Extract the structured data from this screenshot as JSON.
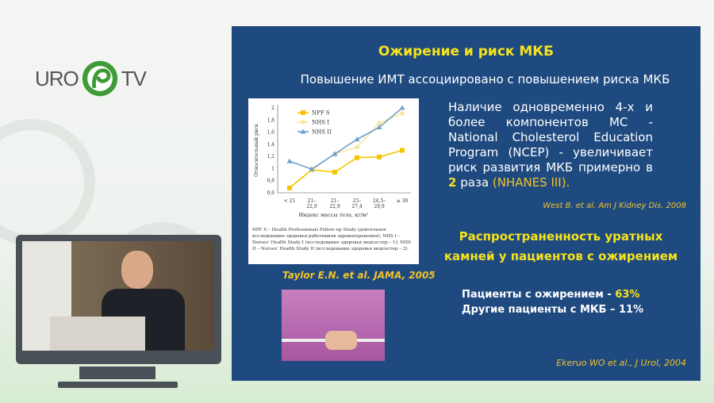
{
  "logo": {
    "left": "URO",
    "right": "TV",
    "color": "#3e9b35"
  },
  "slide": {
    "title": "Ожирение и риск МКБ",
    "subtitle": "Повышение ИМТ ассоциировано с повышением риска МКБ",
    "paragraph_pre": "Наличие одновременно 4-х и более компонентов МС - National Cholesterol Education Program (NCEP) - увеличивает риск развития МКБ примерно в ",
    "paragraph_num": "2",
    "paragraph_post": " раза ",
    "paragraph_ref": "(NHANES III).",
    "ref1": "West B. et al. Am J Kidney Dis. 2008",
    "ref_chart": "Taylor E.N. et al. JAMA, 2005",
    "section2_title": "Распространенность уратных камней у пациентов с ожирением",
    "stat1_label": "Пациенты с ожирением  - ",
    "stat1_value": "63%",
    "stat2": "Другие пациенты с МКБ – 11%",
    "ref2": "Ekeruo WO et al., J Urol, 2004",
    "footnote": "NPF S – Health Professionals Follow-up Study (длительное исследование здоровья работников здравоохранения); NHS I – Nurses' Health Study I (исследование здоровья медсестер – 1); NHS II – Nurses' Health Study II (исследование здоровья медсестер – 2)."
  },
  "chart_data": {
    "type": "line",
    "categories": [
      "< 21",
      "21–22,9",
      "21–22,9",
      "25–27,4",
      "24,5–29,9",
      "≥ 30"
    ],
    "xlabel": "Индекс массы тела, кг/м²",
    "ylabel": "Относительный риск",
    "ylim": [
      0.6,
      2
    ],
    "yticks": [
      "0,6",
      "0,8",
      "1",
      "1,2",
      "1,4",
      "1,6",
      "1,8",
      "2"
    ],
    "legend": "top-left",
    "series": [
      {
        "name": "NPF S",
        "color": "#f5c400",
        "marker": "square",
        "values": [
          0.68,
          0.98,
          0.94,
          1.18,
          1.19,
          1.3
        ]
      },
      {
        "name": "NHS I",
        "color": "#f7e8a0",
        "marker": "circle",
        "values": [
          null,
          0.98,
          1.24,
          1.35,
          1.75,
          1.91
        ]
      },
      {
        "name": "NHS II",
        "color": "#6f9fcf",
        "marker": "triangle",
        "values": [
          1.12,
          0.99,
          1.24,
          1.48,
          1.68,
          2.0
        ]
      }
    ]
  }
}
